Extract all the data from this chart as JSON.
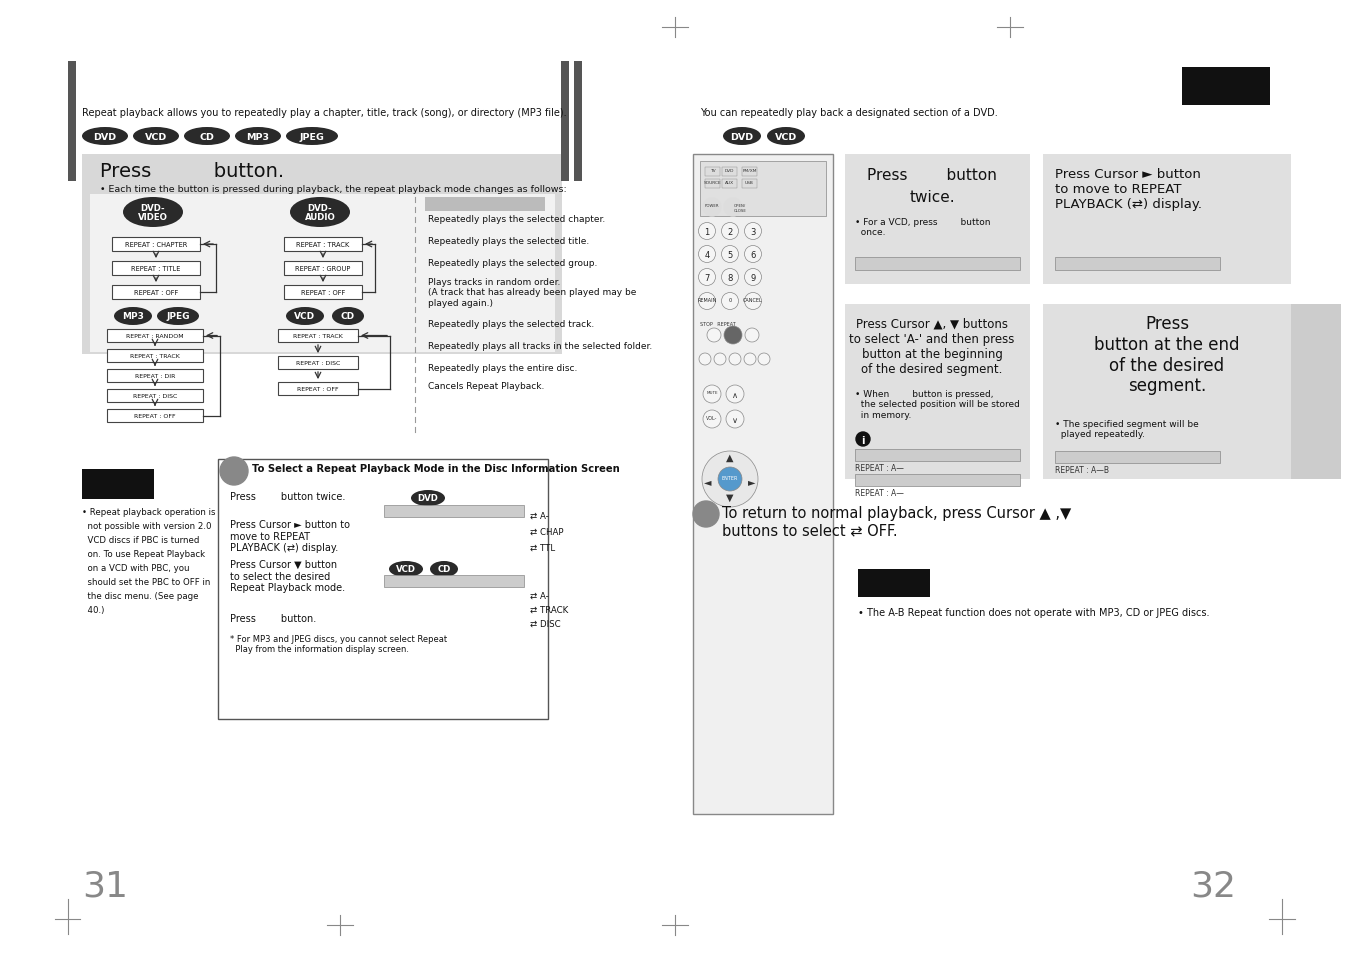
{
  "bg_color": "#ffffff",
  "dark_badge_color": "#2a2a2a",
  "left_page_number": "31",
  "right_page_number": "32",
  "left_top_text": "Repeat playback allows you to repeatedly play a chapter, title, track (song), or directory (MP3 file).",
  "right_top_text": "You can repeatedly play back a designated section of a DVD.",
  "left_badges": [
    "DVD",
    "VCD",
    "CD",
    "MP3",
    "JPEG"
  ],
  "right_badges_top": [
    "DVD",
    "VCD"
  ],
  "dvd_video_items": [
    "REPEAT : CHAPTER",
    "REPEAT : TITLE",
    "REPEAT : OFF"
  ],
  "dvd_audio_items": [
    "REPEAT : TRACK",
    "REPEAT : GROUP",
    "REPEAT : OFF"
  ],
  "mp3_jpeg_items": [
    "REPEAT : RANDOM",
    "REPEAT : TRACK",
    "REPEAT : DIR",
    "REPEAT : DISC",
    "REPEAT : OFF"
  ],
  "vcd_cd_items": [
    "REPEAT : TRACK",
    "REPEAT : DISC",
    "REPEAT : OFF"
  ],
  "desc_items": [
    "Repeatedly plays the selected chapter.",
    "Repeatedly plays the selected title.",
    "Repeatedly plays the selected group.",
    "Plays tracks in random order.\n(A track that has already been played may be\nplayed again.)",
    "Repeatedly plays the selected track.",
    "Repeatedly plays all tracks in the selected folder.",
    "Repeatedly plays the entire disc.",
    "Cancels Repeat Playback."
  ],
  "left_note_lines": [
    "• Repeat playback operation is",
    "  not possible with version 2.0",
    "  VCD discs if PBC is turned",
    "  on. To use Repeat Playback",
    "  on a VCD with PBC, you",
    "  should set the PBC to OFF in",
    "  the disc menu. (See page",
    "  40.)"
  ],
  "ab_repeat_note": "• The A-B Repeat function does not operate with MP3, CD or JPEG discs."
}
